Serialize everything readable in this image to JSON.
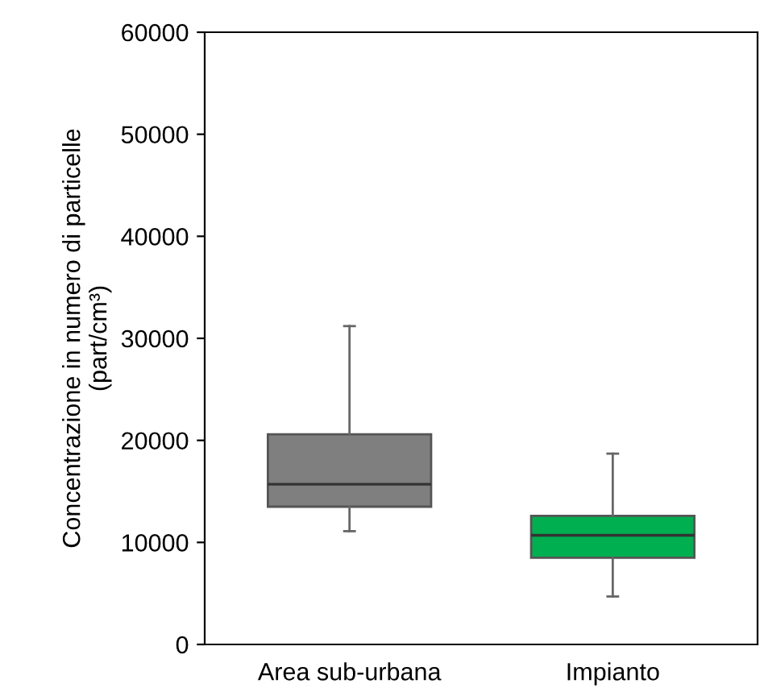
{
  "chart_data": {
    "type": "box",
    "ylabel": "Concentrazione in numero di particelle\n(part/cm³)",
    "categories": [
      "Area sub-urbana",
      "Impianto"
    ],
    "colors": [
      "#7f7f7f",
      "#00b050"
    ],
    "boxes": [
      {
        "low": 11100,
        "q1": 13500,
        "median": 15700,
        "q3": 20600,
        "high": 31200
      },
      {
        "low": 4700,
        "q1": 8500,
        "median": 10700,
        "q3": 12600,
        "high": 18700
      }
    ],
    "ylim": [
      0,
      60000
    ],
    "yticks": [
      0,
      10000,
      20000,
      30000,
      40000,
      50000,
      60000
    ],
    "grid": false
  }
}
